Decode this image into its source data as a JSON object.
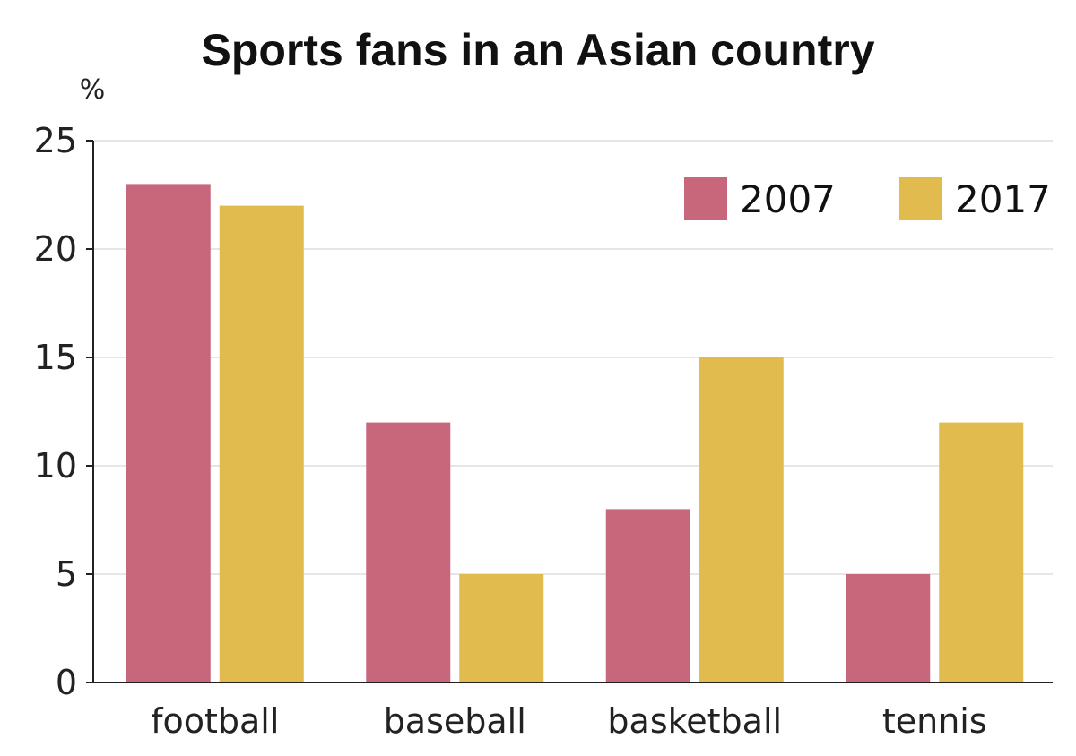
{
  "chart_data": {
    "type": "bar",
    "title": "Sports fans in an Asian country",
    "unit_label": "%",
    "xlabel": "",
    "ylabel": "",
    "categories": [
      "football",
      "baseball",
      "basketball",
      "tennis"
    ],
    "series": [
      {
        "name": "2007",
        "color": "#c8677b",
        "values": [
          23,
          12,
          8,
          5
        ]
      },
      {
        "name": "2017",
        "color": "#e2bb4e",
        "values": [
          22,
          5,
          15,
          12
        ]
      }
    ],
    "ylim": [
      0,
      25
    ],
    "yticks": [
      "0",
      "5",
      "10",
      "15",
      "20",
      "25"
    ],
    "grid": true,
    "legend_position": "top-right"
  }
}
